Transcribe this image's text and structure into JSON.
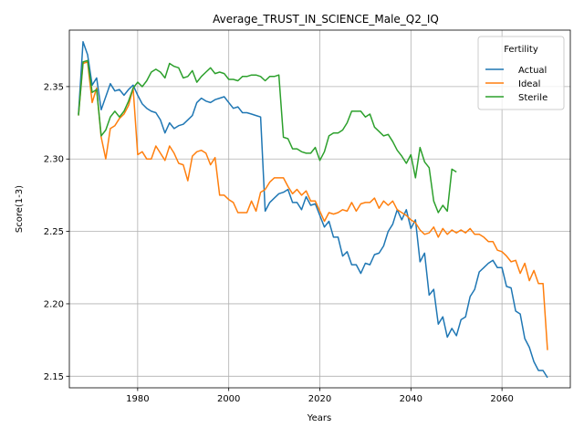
{
  "chart_data": {
    "type": "line",
    "title": "Average_TRUST_IN_SCIENCE_Male_Q2_IQ",
    "xlabel": "Years",
    "ylabel": "Score(1-3)",
    "xlim": [
      1965,
      2075
    ],
    "ylim": [
      2.142,
      2.389
    ],
    "x_ticks": [
      1980,
      2000,
      2020,
      2040,
      2060
    ],
    "y_ticks": [
      2.15,
      2.2,
      2.25,
      2.3,
      2.35
    ],
    "x_tick_labels": [
      "1980",
      "2000",
      "2020",
      "2040",
      "2060"
    ],
    "y_tick_labels": [
      "2.15",
      "2.20",
      "2.25",
      "2.30",
      "2.35"
    ],
    "grid": true,
    "legend": {
      "title": "Fertility",
      "placement": "top-right"
    },
    "series": [
      {
        "name": "Actual",
        "color": "#1f77b4",
        "points": [
          [
            1967,
            2.331
          ],
          [
            1968,
            2.381
          ],
          [
            1969,
            2.372
          ],
          [
            1970,
            2.351
          ],
          [
            1971,
            2.356
          ],
          [
            1972,
            2.334
          ],
          [
            1973,
            2.343
          ],
          [
            1974,
            2.352
          ],
          [
            1975,
            2.347
          ],
          [
            1976,
            2.348
          ],
          [
            1977,
            2.344
          ],
          [
            1978,
            2.348
          ],
          [
            1979,
            2.351
          ],
          [
            1980,
            2.344
          ],
          [
            1981,
            2.338
          ],
          [
            1982,
            2.335
          ],
          [
            1983,
            2.333
          ],
          [
            1984,
            2.332
          ],
          [
            1985,
            2.327
          ],
          [
            1986,
            2.318
          ],
          [
            1987,
            2.325
          ],
          [
            1988,
            2.321
          ],
          [
            1989,
            2.323
          ],
          [
            1990,
            2.324
          ],
          [
            1991,
            2.327
          ],
          [
            1992,
            2.33
          ],
          [
            1993,
            2.339
          ],
          [
            1994,
            2.342
          ],
          [
            1995,
            2.34
          ],
          [
            1996,
            2.339
          ],
          [
            1997,
            2.341
          ],
          [
            1998,
            2.342
          ],
          [
            1999,
            2.343
          ],
          [
            2000,
            2.339
          ],
          [
            2001,
            2.335
          ],
          [
            2002,
            2.336
          ],
          [
            2003,
            2.332
          ],
          [
            2004,
            2.332
          ],
          [
            2005,
            2.331
          ],
          [
            2006,
            2.33
          ],
          [
            2007,
            2.329
          ],
          [
            2008,
            2.264
          ],
          [
            2009,
            2.27
          ],
          [
            2010,
            2.273
          ],
          [
            2011,
            2.276
          ],
          [
            2012,
            2.277
          ],
          [
            2013,
            2.279
          ],
          [
            2014,
            2.27
          ],
          [
            2015,
            2.27
          ],
          [
            2016,
            2.265
          ],
          [
            2017,
            2.274
          ],
          [
            2018,
            2.268
          ],
          [
            2019,
            2.269
          ],
          [
            2020,
            2.261
          ],
          [
            2021,
            2.253
          ],
          [
            2022,
            2.257
          ],
          [
            2023,
            2.246
          ],
          [
            2024,
            2.246
          ],
          [
            2025,
            2.233
          ],
          [
            2026,
            2.236
          ],
          [
            2027,
            2.227
          ],
          [
            2028,
            2.227
          ],
          [
            2029,
            2.221
          ],
          [
            2030,
            2.228
          ],
          [
            2031,
            2.227
          ],
          [
            2032,
            2.234
          ],
          [
            2033,
            2.235
          ],
          [
            2034,
            2.24
          ],
          [
            2035,
            2.25
          ],
          [
            2036,
            2.255
          ],
          [
            2037,
            2.265
          ],
          [
            2038,
            2.258
          ],
          [
            2039,
            2.265
          ],
          [
            2040,
            2.252
          ],
          [
            2041,
            2.258
          ],
          [
            2042,
            2.229
          ],
          [
            2043,
            2.235
          ],
          [
            2044,
            2.206
          ],
          [
            2045,
            2.21
          ],
          [
            2046,
            2.186
          ],
          [
            2047,
            2.191
          ],
          [
            2048,
            2.177
          ],
          [
            2049,
            2.183
          ],
          [
            2050,
            2.178
          ],
          [
            2051,
            2.189
          ],
          [
            2052,
            2.191
          ],
          [
            2053,
            2.205
          ],
          [
            2054,
            2.21
          ],
          [
            2055,
            2.222
          ],
          [
            2056,
            2.225
          ],
          [
            2057,
            2.228
          ],
          [
            2058,
            2.23
          ],
          [
            2059,
            2.225
          ],
          [
            2060,
            2.225
          ],
          [
            2061,
            2.212
          ],
          [
            2062,
            2.211
          ],
          [
            2063,
            2.195
          ],
          [
            2064,
            2.193
          ],
          [
            2065,
            2.176
          ],
          [
            2066,
            2.17
          ],
          [
            2067,
            2.16
          ],
          [
            2068,
            2.154
          ],
          [
            2069,
            2.154
          ],
          [
            2070,
            2.149
          ]
        ]
      },
      {
        "name": "Ideal",
        "color": "#ff7f0e",
        "points": [
          [
            1967,
            2.33
          ],
          [
            1968,
            2.366
          ],
          [
            1969,
            2.367
          ],
          [
            1970,
            2.339
          ],
          [
            1971,
            2.349
          ],
          [
            1972,
            2.315
          ],
          [
            1973,
            2.3
          ],
          [
            1974,
            2.321
          ],
          [
            1975,
            2.323
          ],
          [
            1976,
            2.328
          ],
          [
            1977,
            2.331
          ],
          [
            1978,
            2.337
          ],
          [
            1979,
            2.349
          ],
          [
            1980,
            2.303
          ],
          [
            1981,
            2.305
          ],
          [
            1982,
            2.3
          ],
          [
            1983,
            2.3
          ],
          [
            1984,
            2.309
          ],
          [
            1985,
            2.304
          ],
          [
            1986,
            2.299
          ],
          [
            1987,
            2.309
          ],
          [
            1988,
            2.304
          ],
          [
            1989,
            2.297
          ],
          [
            1990,
            2.296
          ],
          [
            1991,
            2.285
          ],
          [
            1992,
            2.302
          ],
          [
            1993,
            2.305
          ],
          [
            1994,
            2.306
          ],
          [
            1995,
            2.304
          ],
          [
            1996,
            2.296
          ],
          [
            1997,
            2.301
          ],
          [
            1998,
            2.275
          ],
          [
            1999,
            2.275
          ],
          [
            2000,
            2.272
          ],
          [
            2001,
            2.27
          ],
          [
            2002,
            2.263
          ],
          [
            2003,
            2.263
          ],
          [
            2004,
            2.263
          ],
          [
            2005,
            2.271
          ],
          [
            2006,
            2.264
          ],
          [
            2007,
            2.277
          ],
          [
            2008,
            2.279
          ],
          [
            2009,
            2.284
          ],
          [
            2010,
            2.287
          ],
          [
            2011,
            2.287
          ],
          [
            2012,
            2.287
          ],
          [
            2013,
            2.281
          ],
          [
            2014,
            2.276
          ],
          [
            2015,
            2.279
          ],
          [
            2016,
            2.275
          ],
          [
            2017,
            2.278
          ],
          [
            2018,
            2.271
          ],
          [
            2019,
            2.271
          ],
          [
            2020,
            2.264
          ],
          [
            2021,
            2.257
          ],
          [
            2022,
            2.263
          ],
          [
            2023,
            2.262
          ],
          [
            2024,
            2.263
          ],
          [
            2025,
            2.265
          ],
          [
            2026,
            2.264
          ],
          [
            2027,
            2.27
          ],
          [
            2028,
            2.264
          ],
          [
            2029,
            2.269
          ],
          [
            2030,
            2.27
          ],
          [
            2031,
            2.27
          ],
          [
            2032,
            2.273
          ],
          [
            2033,
            2.266
          ],
          [
            2034,
            2.271
          ],
          [
            2035,
            2.268
          ],
          [
            2036,
            2.271
          ],
          [
            2037,
            2.265
          ],
          [
            2038,
            2.263
          ],
          [
            2039,
            2.261
          ],
          [
            2040,
            2.258
          ],
          [
            2041,
            2.256
          ],
          [
            2042,
            2.251
          ],
          [
            2043,
            2.248
          ],
          [
            2044,
            2.249
          ],
          [
            2045,
            2.253
          ],
          [
            2046,
            2.246
          ],
          [
            2047,
            2.252
          ],
          [
            2048,
            2.248
          ],
          [
            2049,
            2.251
          ],
          [
            2050,
            2.249
          ],
          [
            2051,
            2.251
          ],
          [
            2052,
            2.249
          ],
          [
            2053,
            2.252
          ],
          [
            2054,
            2.248
          ],
          [
            2055,
            2.248
          ],
          [
            2056,
            2.246
          ],
          [
            2057,
            2.243
          ],
          [
            2058,
            2.243
          ],
          [
            2059,
            2.237
          ],
          [
            2060,
            2.236
          ],
          [
            2061,
            2.233
          ],
          [
            2062,
            2.229
          ],
          [
            2063,
            2.23
          ],
          [
            2064,
            2.221
          ],
          [
            2065,
            2.228
          ],
          [
            2066,
            2.216
          ],
          [
            2067,
            2.223
          ],
          [
            2068,
            2.214
          ],
          [
            2069,
            2.214
          ],
          [
            2070,
            2.168
          ]
        ]
      },
      {
        "name": "Sterile",
        "color": "#2ca02c",
        "points": [
          [
            1967,
            2.33
          ],
          [
            1968,
            2.367
          ],
          [
            1969,
            2.368
          ],
          [
            1970,
            2.346
          ],
          [
            1971,
            2.348
          ],
          [
            1972,
            2.316
          ],
          [
            1973,
            2.32
          ],
          [
            1974,
            2.329
          ],
          [
            1975,
            2.333
          ],
          [
            1976,
            2.329
          ],
          [
            1977,
            2.333
          ],
          [
            1978,
            2.34
          ],
          [
            1979,
            2.349
          ],
          [
            1980,
            2.353
          ],
          [
            1981,
            2.35
          ],
          [
            1982,
            2.354
          ],
          [
            1983,
            2.36
          ],
          [
            1984,
            2.362
          ],
          [
            1985,
            2.36
          ],
          [
            1986,
            2.356
          ],
          [
            1987,
            2.366
          ],
          [
            1988,
            2.364
          ],
          [
            1989,
            2.363
          ],
          [
            1990,
            2.356
          ],
          [
            1991,
            2.357
          ],
          [
            1992,
            2.361
          ],
          [
            1993,
            2.353
          ],
          [
            1994,
            2.357
          ],
          [
            1995,
            2.36
          ],
          [
            1996,
            2.363
          ],
          [
            1997,
            2.359
          ],
          [
            1998,
            2.36
          ],
          [
            1999,
            2.359
          ],
          [
            2000,
            2.355
          ],
          [
            2001,
            2.355
          ],
          [
            2002,
            2.354
          ],
          [
            2003,
            2.357
          ],
          [
            2004,
            2.357
          ],
          [
            2005,
            2.358
          ],
          [
            2006,
            2.358
          ],
          [
            2007,
            2.357
          ],
          [
            2008,
            2.354
          ],
          [
            2009,
            2.357
          ],
          [
            2010,
            2.357
          ],
          [
            2011,
            2.358
          ],
          [
            2012,
            2.315
          ],
          [
            2013,
            2.314
          ],
          [
            2014,
            2.307
          ],
          [
            2015,
            2.307
          ],
          [
            2016,
            2.305
          ],
          [
            2017,
            2.304
          ],
          [
            2018,
            2.304
          ],
          [
            2019,
            2.308
          ],
          [
            2020,
            2.299
          ],
          [
            2021,
            2.305
          ],
          [
            2022,
            2.316
          ],
          [
            2023,
            2.318
          ],
          [
            2024,
            2.318
          ],
          [
            2025,
            2.32
          ],
          [
            2026,
            2.325
          ],
          [
            2027,
            2.333
          ],
          [
            2028,
            2.333
          ],
          [
            2029,
            2.333
          ],
          [
            2030,
            2.329
          ],
          [
            2031,
            2.331
          ],
          [
            2032,
            2.322
          ],
          [
            2033,
            2.319
          ],
          [
            2034,
            2.316
          ],
          [
            2035,
            2.317
          ],
          [
            2036,
            2.312
          ],
          [
            2037,
            2.306
          ],
          [
            2038,
            2.302
          ],
          [
            2039,
            2.297
          ],
          [
            2040,
            2.303
          ],
          [
            2041,
            2.287
          ],
          [
            2042,
            2.308
          ],
          [
            2043,
            2.298
          ],
          [
            2044,
            2.294
          ],
          [
            2045,
            2.271
          ],
          [
            2046,
            2.263
          ],
          [
            2047,
            2.268
          ],
          [
            2048,
            2.264
          ],
          [
            2049,
            2.293
          ],
          [
            2050,
            2.291
          ]
        ]
      }
    ]
  }
}
